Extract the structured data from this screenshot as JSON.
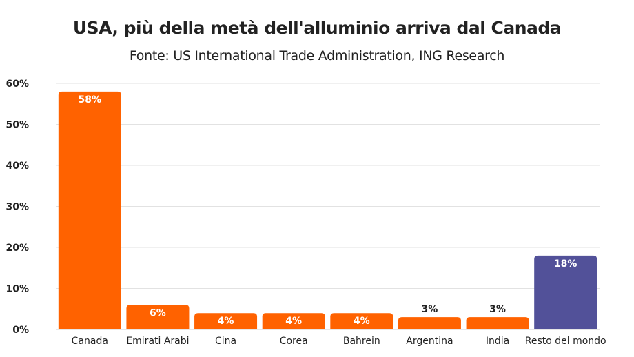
{
  "chart_data": {
    "type": "bar",
    "title": "USA, più della metà dell'alluminio arriva dal Canada",
    "subtitle": "Fonte: US International Trade Administration, ING Research",
    "categories": [
      "Canada",
      "Emirati Arabi",
      "Cina",
      "Corea",
      "Bahrein",
      "Argentina",
      "India",
      "Resto del mondo"
    ],
    "values": [
      58,
      6,
      4,
      4,
      4,
      3,
      3,
      18
    ],
    "data_labels": [
      "58%",
      "6%",
      "4%",
      "4%",
      "4%",
      "3%",
      "3%",
      "18%"
    ],
    "colors": [
      "#FF6200",
      "#FF6200",
      "#FF6200",
      "#FF6200",
      "#FF6200",
      "#FF6200",
      "#FF6200",
      "#525199"
    ],
    "yticks": [
      "0%",
      "10%",
      "20%",
      "30%",
      "40%",
      "50%",
      "60%"
    ],
    "ylim": [
      0,
      60
    ],
    "grid": true,
    "xlabel": "",
    "ylabel": ""
  }
}
